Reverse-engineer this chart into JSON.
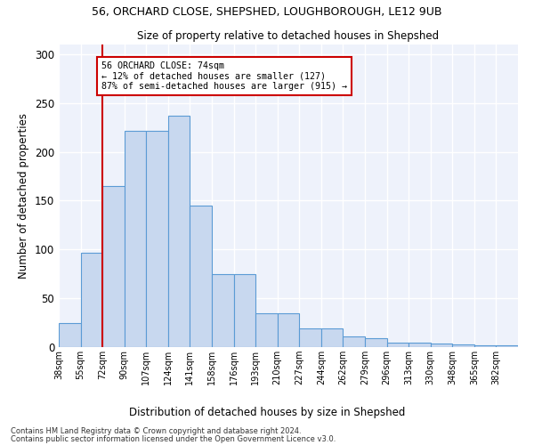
{
  "title1": "56, ORCHARD CLOSE, SHEPSHED, LOUGHBOROUGH, LE12 9UB",
  "title2": "Size of property relative to detached houses in Shepshed",
  "xlabel": "Distribution of detached houses by size in Shepshed",
  "ylabel": "Number of detached properties",
  "bar_color": "#c8d8ef",
  "bar_edge_color": "#5b9bd5",
  "background_color": "#eef2fb",
  "grid_color": "#ffffff",
  "vline_color": "#cc0000",
  "vline_x": 2,
  "categories": [
    "38sqm",
    "55sqm",
    "72sqm",
    "90sqm",
    "107sqm",
    "124sqm",
    "141sqm",
    "158sqm",
    "176sqm",
    "193sqm",
    "210sqm",
    "227sqm",
    "244sqm",
    "262sqm",
    "279sqm",
    "296sqm",
    "313sqm",
    "330sqm",
    "348sqm",
    "365sqm",
    "382sqm"
  ],
  "bar_heights": [
    25,
    97,
    165,
    222,
    222,
    237,
    145,
    75,
    75,
    35,
    35,
    19,
    19,
    11,
    9,
    5,
    5,
    4,
    3,
    2,
    2
  ],
  "ylim": [
    0,
    310
  ],
  "annotation_text": "56 ORCHARD CLOSE: 74sqm\n← 12% of detached houses are smaller (127)\n87% of semi-detached houses are larger (915) →",
  "footnote1": "Contains HM Land Registry data © Crown copyright and database right 2024.",
  "footnote2": "Contains public sector information licensed under the Open Government Licence v3.0."
}
